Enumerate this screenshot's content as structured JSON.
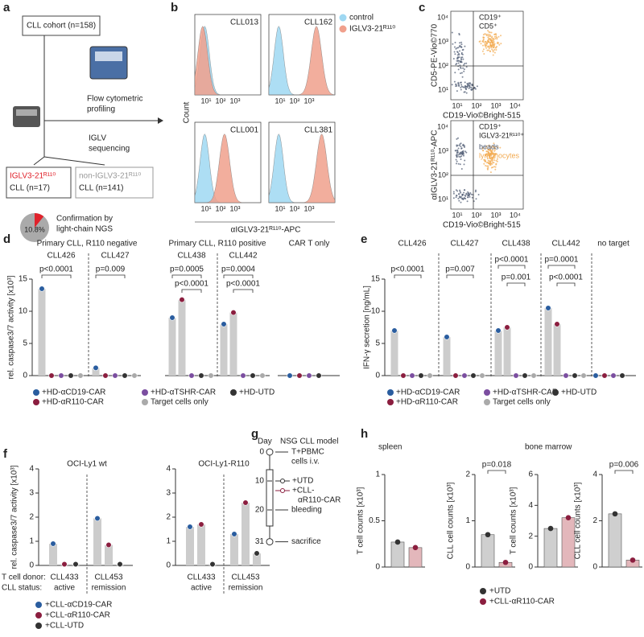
{
  "panel_labels": [
    "a",
    "b",
    "c",
    "d",
    "e",
    "f",
    "g",
    "h"
  ],
  "panel_a": {
    "cohort": "CLL cohort (n=158)",
    "flow": [
      "Flow cytometric",
      "profiling"
    ],
    "seq": [
      "IGLV",
      "sequencing"
    ],
    "positive": [
      "IGLV3-21ᴿ¹¹⁰",
      "CLL (n=17)"
    ],
    "negative": [
      "non-IGLV3-21ᴿ¹¹⁰",
      "CLL (n=141)"
    ],
    "pie": {
      "value": 10.8,
      "value_label": "10.8%",
      "color": "#e0222b"
    },
    "confirmation": [
      "Confirmation by",
      "light-chain NGS"
    ]
  },
  "panel_b": {
    "y_label": "Count",
    "x_label": "αIGLV3-21ᴿ¹¹⁰-APC",
    "legend": [
      {
        "name": "control",
        "color": "#9fd8f2"
      },
      {
        "name": "IGLV3-21ᴿ¹¹⁰",
        "color": "#f0a08c"
      }
    ],
    "samples": [
      "CLL013",
      "CLL162",
      "CLL001",
      "CLL381"
    ],
    "ticks": [
      "10¹",
      "10²",
      "10³"
    ]
  },
  "panel_c": {
    "top": {
      "y_label": "CD5-PE-Vio©770",
      "x_label": "CD19-Vio©Bright-515",
      "gate": [
        "CD19⁺",
        "CD5⁺"
      ]
    },
    "bottom": {
      "y_label": "αIGLV3-21ᴿ¹¹⁰-APC",
      "x_label": "CD19-Vio©Bright-515",
      "gate": [
        "CD19⁺",
        "IGLV3-21ᴿ¹¹⁰⁺"
      ],
      "beads": "beads",
      "lymphocytes": "lymphocytes"
    },
    "ticks": [
      "10¹",
      "10²",
      "10³",
      "10⁴"
    ]
  },
  "panel_g": {
    "day": "Day",
    "title": "NSG CLL model",
    "days": [
      0,
      10,
      20,
      31
    ],
    "infusion": [
      "T+PBMC",
      "cells i.v."
    ],
    "treatment": [
      "+UTD",
      "+CLL-",
      "αR110-CAR"
    ],
    "bleeding": "bleeding",
    "sacrifice": "sacrifice"
  },
  "panel_h": {
    "titles": [
      "spleen",
      "bone marrow"
    ],
    "legend": [
      {
        "name": "+UTD",
        "color": "#333333"
      },
      {
        "name": "+CLL-αR110-CAR",
        "color": "#8b1e3f"
      }
    ]
  },
  "chart_data": [
    {
      "type": "bar",
      "y_label": "rel. caspase3/7 activity [x10³]",
      "ylim": [
        0,
        15
      ],
      "yticks": [
        0,
        5,
        10,
        15
      ],
      "headers": [
        "Primary CLL, R110 negative",
        "Primary CLL, R110 positive",
        "CAR T only"
      ],
      "categories": [
        "CLL426",
        "CLL427",
        "CLL438",
        "CLL442",
        null
      ],
      "series": [
        {
          "name": "+HD-αCD19-CAR",
          "color": "#2a5d9f",
          "values": [
            13.5,
            1.2,
            9,
            8,
            0
          ]
        },
        {
          "name": "+HD-αR110-CAR",
          "color": "#8b1e3f",
          "values": [
            0,
            0,
            11.8,
            9.8,
            0
          ]
        },
        {
          "name": "+HD-αTSHR-CAR",
          "color": "#7b4ea0",
          "values": [
            0,
            0,
            0,
            0,
            0
          ]
        },
        {
          "name": "+HD-UTD",
          "color": "#333333",
          "values": [
            0,
            0,
            0,
            0,
            0
          ]
        },
        {
          "name": "Target cells only",
          "color": "#aaaaaa",
          "values": [
            0,
            0,
            0,
            0,
            null
          ]
        }
      ],
      "annotations": [
        "p<0.0001",
        "p=0.009",
        "p=0.0005",
        "p<0.0001",
        "p=0.0004",
        "p<0.0001"
      ]
    },
    {
      "type": "bar",
      "y_label": "IFN-γ secretion [ng/mL]",
      "ylim": [
        0,
        15
      ],
      "yticks": [
        0,
        5,
        10,
        15
      ],
      "categories": [
        "CLL426",
        "CLL427",
        "CLL438",
        "CLL442",
        "no target"
      ],
      "series": [
        {
          "name": "+HD-αCD19-CAR",
          "color": "#2a5d9f",
          "values": [
            7,
            6,
            7,
            10.5,
            0
          ]
        },
        {
          "name": "+HD-αR110-CAR",
          "color": "#8b1e3f",
          "values": [
            0,
            0,
            7.5,
            8,
            0
          ]
        },
        {
          "name": "+HD-αTSHR-CAR",
          "color": "#7b4ea0",
          "values": [
            0,
            0,
            0,
            0,
            0
          ]
        },
        {
          "name": "+HD-UTD",
          "color": "#333333",
          "values": [
            0,
            0,
            0,
            0,
            0
          ]
        },
        {
          "name": "Target cells only",
          "color": "#aaaaaa",
          "values": [
            0,
            0,
            0,
            0,
            null
          ]
        }
      ],
      "annotations": [
        "p<0.0001",
        "p=0.007",
        "p<0.0001",
        "p=0.001",
        "p=0.0001",
        "p<0.0001"
      ]
    },
    {
      "type": "bar",
      "y_label": "rel. caspase3/7 activity [x10³]",
      "ylim": [
        0,
        4
      ],
      "yticks": [
        0,
        1,
        2,
        3,
        4
      ],
      "titles": [
        "OCI-Ly1 wt",
        "OCI-Ly1-R110"
      ],
      "row_labels": [
        "T cell donor:",
        "CLL status:"
      ],
      "categories": [
        "CLL433",
        "CLL453",
        "CLL433",
        "CLL453"
      ],
      "status": [
        "active",
        "remission",
        "active",
        "remission"
      ],
      "series": [
        {
          "name": "+CLL-αCD19-CAR",
          "color": "#2a5d9f",
          "values": [
            0.9,
            1.95,
            1.6,
            1.3
          ]
        },
        {
          "name": "+CLL-αR110-CAR",
          "color": "#8b1e3f",
          "values": [
            0.05,
            0.85,
            1.7,
            2.6
          ]
        },
        {
          "name": "+CLL-UTD",
          "color": "#333333",
          "values": [
            0.05,
            0.05,
            0.05,
            0.5
          ]
        }
      ]
    },
    {
      "type": "bar",
      "y_label": "T cell counts [x10³]",
      "ylim": [
        0,
        1
      ],
      "yticks": [
        0,
        0.5,
        1
      ],
      "values": [
        0.27,
        0.21
      ],
      "colors": [
        "#cfcfcf",
        "#e3b7bb"
      ]
    },
    {
      "type": "bar",
      "y_label": "CLL cell counts [x10³]",
      "ylim": [
        0,
        2
      ],
      "yticks": [
        0,
        1,
        2
      ],
      "values": [
        0.7,
        0.1
      ],
      "colors": [
        "#cfcfcf",
        "#e3b7bb"
      ],
      "annotation": "p=0.018"
    },
    {
      "type": "bar",
      "y_label": "T cell counts [x10³]",
      "ylim": [
        0,
        6
      ],
      "yticks": [
        0,
        2,
        4,
        6
      ],
      "values": [
        2.5,
        3.2
      ],
      "colors": [
        "#cfcfcf",
        "#e3b7bb"
      ]
    },
    {
      "type": "bar",
      "y_label": "CLL cell counts [x10³]",
      "ylim": [
        0,
        4
      ],
      "yticks": [
        0,
        2,
        4
      ],
      "values": [
        2.3,
        0.3
      ],
      "colors": [
        "#cfcfcf",
        "#e3b7bb"
      ],
      "annotation": "p=0.006"
    }
  ]
}
